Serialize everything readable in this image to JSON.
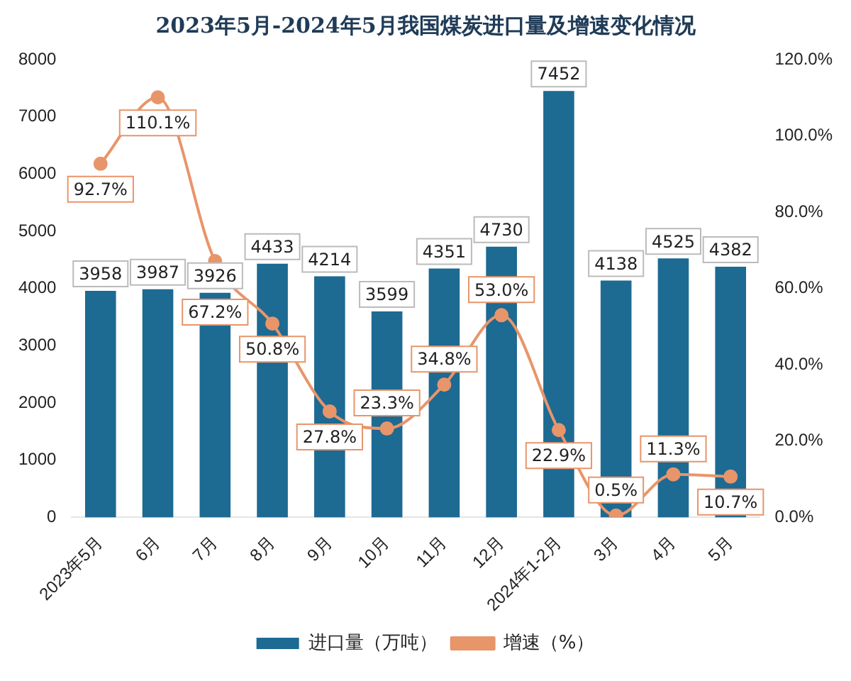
{
  "chart_data": {
    "type": "bar",
    "title": "2023年5月-2024年5月我国煤炭进口量及增速变化情况",
    "categories": [
      "2023年5月",
      "6月",
      "7月",
      "8月",
      "9月",
      "10月",
      "11月",
      "12月",
      "2024年1-2月",
      "3月",
      "4月",
      "5月"
    ],
    "series": [
      {
        "name": "进口量（万吨）",
        "color": "#1d6a93",
        "values": [
          3958,
          3987,
          3926,
          4433,
          4214,
          3599,
          4351,
          4730,
          7452,
          4138,
          4525,
          4382
        ],
        "value_labels": [
          "3958",
          "3987",
          "3926",
          "4433",
          "4214",
          "3599",
          "4351",
          "4730",
          "7452",
          "4138",
          "4525",
          "4382"
        ]
      },
      {
        "name": "增速（%）",
        "type": "line",
        "axis": "y2",
        "color": "#e8956a",
        "marker": "circle",
        "values": [
          92.7,
          110.1,
          67.2,
          50.8,
          27.8,
          23.3,
          34.8,
          53.0,
          22.9,
          0.5,
          11.3,
          10.7
        ],
        "value_labels": [
          "92.7%",
          "110.1%",
          "67.2%",
          "50.8%",
          "27.8%",
          "23.3%",
          "34.8%",
          "53.0%",
          "22.9%",
          "0.5%",
          "11.3%",
          "10.7%"
        ]
      }
    ],
    "ylim": [
      0,
      8000
    ],
    "yticks": [
      0,
      1000,
      2000,
      3000,
      4000,
      5000,
      6000,
      7000,
      8000
    ],
    "y2lim": [
      0,
      120
    ],
    "y2ticks": [
      {
        "value": 0,
        "label": "0.0%"
      },
      {
        "value": 20,
        "label": "20.0%"
      },
      {
        "value": 40,
        "label": "40.0%"
      },
      {
        "value": 60,
        "label": "60.0%"
      },
      {
        "value": 80,
        "label": "80.0%"
      },
      {
        "value": 100,
        "label": "100.0%"
      },
      {
        "value": 120,
        "label": "120.0%"
      }
    ],
    "legend": "bottom",
    "grid": false
  }
}
